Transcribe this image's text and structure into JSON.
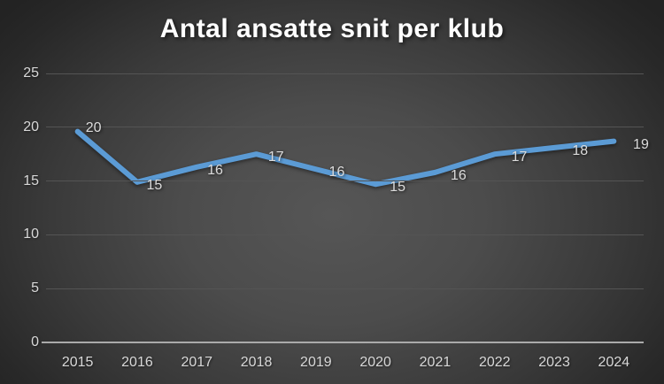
{
  "chart_data": {
    "type": "line",
    "title": "Antal ansatte snit per klub",
    "categories": [
      "2015",
      "2016",
      "2017",
      "2018",
      "2019",
      "2020",
      "2021",
      "2022",
      "2023",
      "2024"
    ],
    "values": [
      20,
      15,
      16,
      17,
      16,
      15,
      16,
      17,
      18,
      19
    ],
    "data_labels": [
      "20",
      "15",
      "16",
      "17",
      "16",
      "15",
      "16",
      "17",
      "18",
      "19"
    ],
    "plotted_values": [
      19.6,
      14.9,
      16.3,
      17.5,
      16.1,
      14.7,
      15.8,
      17.5,
      18.1,
      18.7
    ],
    "y_ticks": [
      0,
      5,
      10,
      15,
      20,
      25
    ],
    "ylim": [
      0,
      25
    ],
    "xlabel": "",
    "ylabel": "",
    "grid": true,
    "legend": false,
    "colors": {
      "line": "#5B9BD5",
      "title": "#ffffff",
      "data_label": "#dcdcdc",
      "axis_label": "#d8d8d8",
      "gridline": "#545454",
      "axis_line": "#aaaaaa"
    }
  }
}
